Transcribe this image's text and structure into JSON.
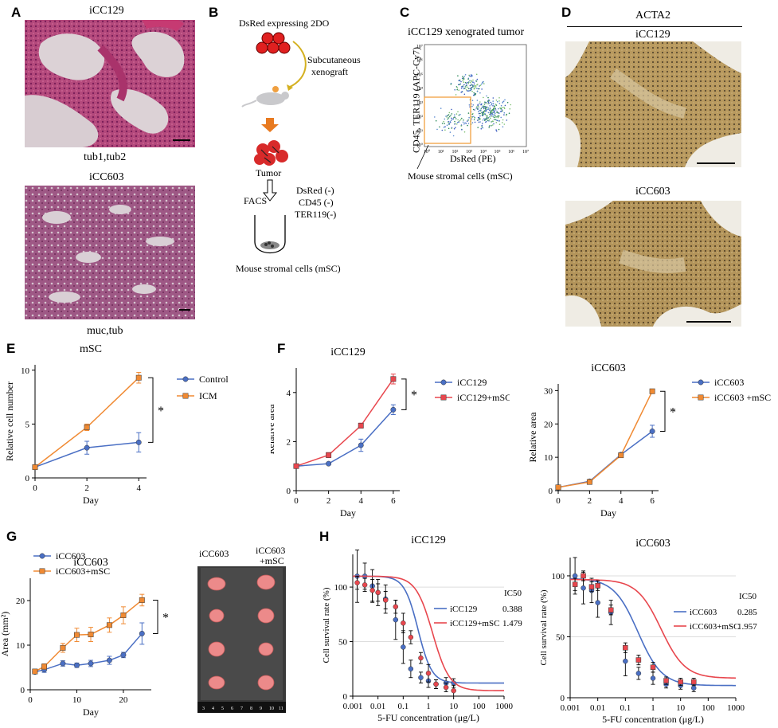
{
  "panels": {
    "A": {
      "letter": "A",
      "img1_label": "iCC129",
      "img1_caption": "tub1,tub2",
      "img2_label": "iCC603",
      "img2_caption": "muc,tub"
    },
    "B": {
      "letter": "B",
      "top": "DsRed expressing 2DO",
      "step1": "Subcutaneous",
      "step1b": "xenograft",
      "tumor": "Tumor",
      "facs": "FACS",
      "m1": "DsRed (-)",
      "m2": "CD45 (-)",
      "m3": "TER119(-)",
      "bottom": "Mouse stromal cells (mSC)"
    },
    "C": {
      "letter": "C",
      "title": "iCC129 xenograted tumor",
      "ylabel": "CD45, TER119 (APC-Cy7)",
      "xlabel": "DsRed (PE)",
      "callout": "Mouse stromal cells (mSC)",
      "ticks": [
        "10⁰",
        "10¹",
        "10²",
        "10³",
        "10⁴",
        "10⁵",
        "10⁶",
        "10⁷"
      ]
    },
    "D": {
      "letter": "D",
      "title": "ACTA2",
      "img1_label": "iCC129",
      "img2_label": "iCC603"
    },
    "E": {
      "letter": "E"
    },
    "F": {
      "letter": "F"
    },
    "G": {
      "letter": "G",
      "photo_label1": "iCC603",
      "photo_label2": "iCC603",
      "photo_label2b": "+mSC"
    },
    "H": {
      "letter": "H"
    }
  },
  "colors": {
    "blue": "#4a6fc4",
    "orange": "#f08a33",
    "red": "#e8474e"
  },
  "chart_data": [
    {
      "id": "E",
      "type": "line",
      "title": "mSC",
      "xlabel": "Day",
      "ylabel": "Relative cell number",
      "xlim": [
        0,
        4.3
      ],
      "ylim": [
        0,
        10.5
      ],
      "xticks": [
        0,
        2,
        4
      ],
      "yticks": [
        0,
        5,
        10
      ],
      "series": [
        {
          "name": "Control",
          "color": "#4a6fc4",
          "marker": "circle",
          "x": [
            0,
            2,
            4
          ],
          "y": [
            1,
            2.8,
            3.3
          ],
          "err": [
            0.1,
            0.6,
            0.9
          ]
        },
        {
          "name": "ICM",
          "color": "#f08a33",
          "marker": "square",
          "x": [
            0,
            2,
            4
          ],
          "y": [
            1,
            4.7,
            9.3
          ],
          "err": [
            0.1,
            0.3,
            0.5
          ]
        }
      ],
      "annotation": "*"
    },
    {
      "id": "F1",
      "type": "line",
      "title": "iCC129",
      "xlabel": "Day",
      "ylabel": "Relative area",
      "xlim": [
        0,
        6.4
      ],
      "ylim": [
        0,
        5
      ],
      "xticks": [
        0,
        2,
        4,
        6
      ],
      "yticks": [
        0,
        2,
        4
      ],
      "series": [
        {
          "name": "iCC129",
          "color": "#4a6fc4",
          "marker": "circle",
          "x": [
            0,
            2,
            4,
            6
          ],
          "y": [
            1,
            1.1,
            1.85,
            3.3
          ],
          "err": [
            0.05,
            0.05,
            0.25,
            0.2
          ]
        },
        {
          "name": "iCC129+mSC",
          "color": "#e8474e",
          "marker": "square",
          "x": [
            0,
            2,
            4,
            6
          ],
          "y": [
            1,
            1.45,
            2.65,
            4.55
          ],
          "err": [
            0.05,
            0.1,
            0.1,
            0.2
          ]
        }
      ],
      "annotation": "*"
    },
    {
      "id": "F2",
      "type": "line",
      "title": "iCC603",
      "xlabel": "Day",
      "ylabel": "Relative area",
      "xlim": [
        0,
        6.4
      ],
      "ylim": [
        0,
        32
      ],
      "xticks": [
        0,
        2,
        4,
        6
      ],
      "yticks": [
        0,
        10,
        20,
        30
      ],
      "series": [
        {
          "name": "iCC603",
          "color": "#4a6fc4",
          "marker": "circle",
          "x": [
            0,
            2,
            4,
            6
          ],
          "y": [
            1,
            2.8,
            10.8,
            17.8
          ],
          "err": [
            0.2,
            0.3,
            0.5,
            1.8
          ]
        },
        {
          "name": "iCC603 +mSC",
          "color": "#f08a33",
          "marker": "square",
          "x": [
            0,
            2,
            4,
            6
          ],
          "y": [
            1,
            2.6,
            10.6,
            29.8
          ],
          "err": [
            0.2,
            0.3,
            0.5,
            0.6
          ]
        }
      ],
      "annotation": "*"
    },
    {
      "id": "G",
      "type": "line",
      "title": "iCC603",
      "xlabel": "Day",
      "ylabel": "Area (mm²)",
      "xlim": [
        0,
        26
      ],
      "ylim": [
        0,
        25
      ],
      "xticks": [
        0,
        10,
        20
      ],
      "yticks": [
        0,
        10,
        20
      ],
      "series": [
        {
          "name": "iCC603",
          "color": "#4a6fc4",
          "marker": "circle",
          "x": [
            1,
            3,
            7,
            10,
            13,
            17,
            20,
            24
          ],
          "y": [
            4.0,
            4.5,
            5.9,
            5.5,
            5.9,
            6.6,
            7.8,
            12.6
          ],
          "err": [
            0.3,
            0.6,
            0.6,
            0.5,
            0.7,
            0.9,
            0.6,
            2.4
          ]
        },
        {
          "name": "iCC603+mSC",
          "color": "#f08a33",
          "marker": "square",
          "x": [
            1,
            3,
            7,
            10,
            13,
            17,
            20,
            24
          ],
          "y": [
            4.1,
            5.2,
            9.4,
            12.3,
            12.4,
            14.5,
            16.7,
            20.1
          ],
          "err": [
            0.3,
            0.6,
            1.0,
            1.5,
            1.6,
            1.6,
            1.9,
            1.3
          ]
        }
      ],
      "annotation": "*"
    },
    {
      "id": "H1",
      "type": "scatter",
      "title": "iCC129",
      "xlabel": "5-FU concentration (μg/L)",
      "ylabel": "Cell survival rate (%)",
      "xscale": "log",
      "xlim": [
        0.001,
        1000
      ],
      "ylim": [
        0,
        130
      ],
      "yticks": [
        0,
        50,
        100
      ],
      "xticks": [
        0.001,
        0.01,
        0.1,
        1,
        10,
        100,
        1000
      ],
      "xticklabels": [
        "0.001",
        "0.01",
        "0.1",
        "1",
        "10",
        "100",
        "1000"
      ],
      "ic50_header": "IC50",
      "series": [
        {
          "name": "iCC129",
          "color": "#4a6fc4",
          "marker": "circle",
          "ic50": "0.388",
          "fit": {
            "top": 110,
            "bottom": 12,
            "ic50": 0.388,
            "hill": 1.6
          },
          "x": [
            0.0015,
            0.003,
            0.006,
            0.01,
            0.02,
            0.05,
            0.1,
            0.2,
            0.5,
            1,
            2,
            5,
            10
          ],
          "y": [
            110,
            110,
            101,
            95,
            89,
            70,
            45,
            25,
            17,
            14,
            11,
            12,
            12
          ],
          "err": [
            24,
            12,
            15,
            12,
            13,
            18,
            15,
            8,
            5,
            6,
            4,
            5,
            4
          ]
        },
        {
          "name": "iCC129+mSC",
          "color": "#e8474e",
          "marker": "circle",
          "ic50": "1.479",
          "fit": {
            "top": 110,
            "bottom": 5,
            "ic50": 1.479,
            "hill": 1.3
          },
          "x": [
            0.0015,
            0.003,
            0.006,
            0.01,
            0.02,
            0.05,
            0.1,
            0.2,
            0.5,
            1,
            2,
            5,
            10
          ],
          "y": [
            104,
            102,
            97,
            95,
            88,
            82,
            67,
            54,
            35,
            21,
            11,
            8,
            5
          ],
          "err": [
            6,
            6,
            10,
            8,
            8,
            6,
            9,
            6,
            5,
            8,
            4,
            4,
            5
          ]
        }
      ]
    },
    {
      "id": "H2",
      "type": "scatter",
      "title": "iCC603",
      "xlabel": "5-FU concentration (μg/L)",
      "ylabel": "Cell survival rate (%)",
      "xscale": "log",
      "xlim": [
        0.001,
        1000
      ],
      "ylim": [
        0,
        115
      ],
      "yticks": [
        0,
        50,
        100
      ],
      "xticks": [
        0.001,
        0.01,
        0.1,
        1,
        10,
        100,
        1000
      ],
      "xticklabels": [
        "0.001",
        "0.01",
        "0.1",
        "1",
        "10",
        "100",
        "1000"
      ],
      "ic50_header": "IC50",
      "series": [
        {
          "name": "iCC603",
          "color": "#4a6fc4",
          "marker": "circle",
          "ic50": "0.285",
          "fit": {
            "top": 98,
            "bottom": 10,
            "ic50": 0.285,
            "hill": 1.0
          },
          "x": [
            0.0015,
            0.003,
            0.006,
            0.01,
            0.03,
            0.1,
            0.3,
            1,
            3,
            10,
            30
          ],
          "y": [
            100,
            90,
            88,
            78,
            70,
            30,
            20,
            16,
            11,
            10,
            8
          ],
          "err": [
            15,
            13,
            10,
            12,
            10,
            12,
            5,
            5,
            3,
            3,
            3
          ]
        },
        {
          "name": "iCC603+mSC",
          "color": "#e8474e",
          "marker": "square",
          "ic50": "1.957",
          "fit": {
            "top": 97,
            "bottom": 16,
            "ic50": 1.957,
            "hill": 1.0
          },
          "x": [
            0.0015,
            0.003,
            0.006,
            0.01,
            0.03,
            0.1,
            0.3,
            1,
            3,
            10,
            30
          ],
          "y": [
            93,
            100,
            91,
            92,
            72,
            41,
            31,
            25,
            14,
            13,
            13
          ],
          "err": [
            5,
            4,
            4,
            4,
            4,
            4,
            4,
            4,
            3,
            3,
            3
          ]
        }
      ]
    }
  ]
}
